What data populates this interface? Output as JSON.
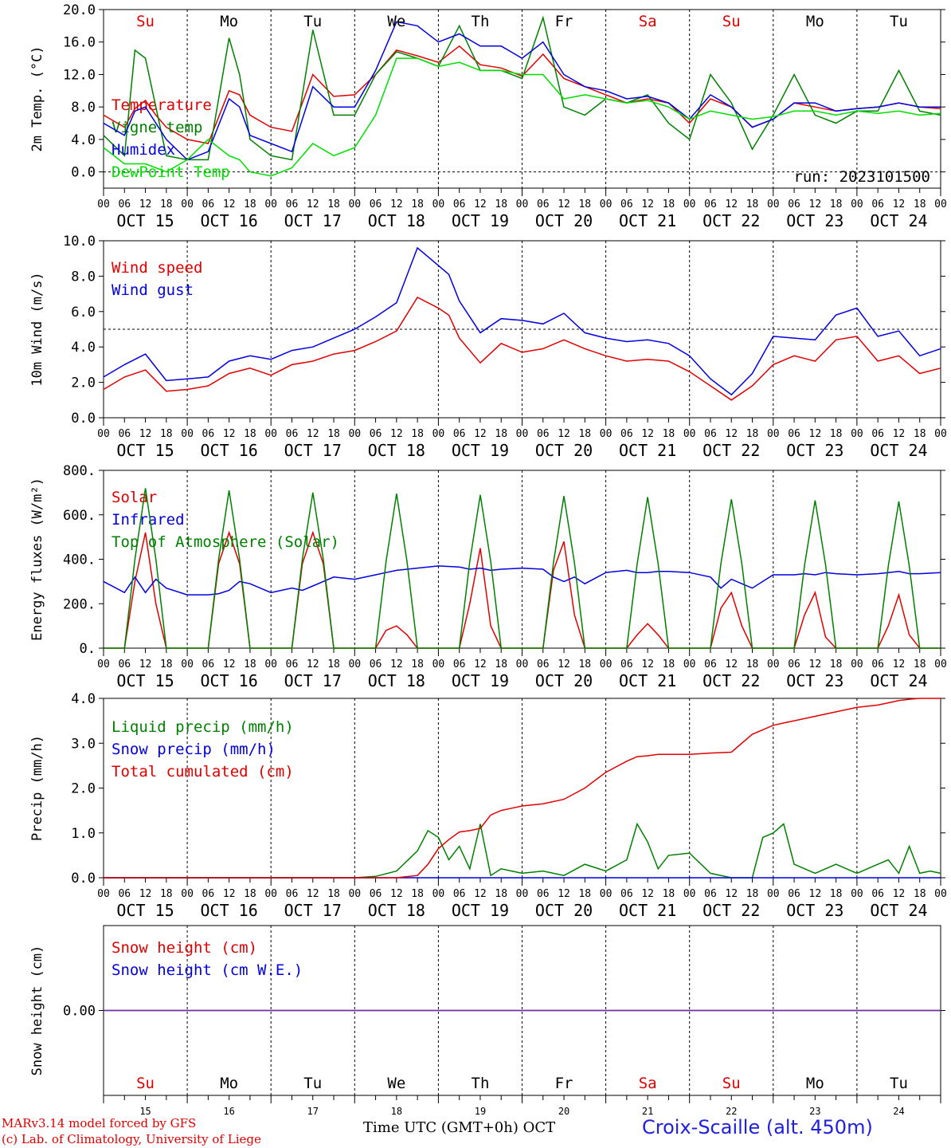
{
  "run_label": "run: 2023101500",
  "day_names": [
    "Su",
    "Mo",
    "Tu",
    "We",
    "Th",
    "Fr",
    "Sa",
    "Su",
    "Mo",
    "Tu"
  ],
  "day_name_colors": [
    "#e00000",
    "#000000",
    "#000000",
    "#000000",
    "#000000",
    "#000000",
    "#e00000",
    "#e00000",
    "#000000",
    "#000000"
  ],
  "date_labels": [
    "OCT 15",
    "OCT 16",
    "OCT 17",
    "OCT 18",
    "OCT 19",
    "OCT 20",
    "OCT 21",
    "OCT 22",
    "OCT 23",
    "OCT 24"
  ],
  "day_numbers": [
    "15",
    "16",
    "17",
    "18",
    "19",
    "20",
    "21",
    "22",
    "23",
    "24"
  ],
  "hour_ticks": [
    "00",
    "06",
    "12",
    "18"
  ],
  "hour_end": "00",
  "footer": {
    "model": "MARv3.14 model forced by GFS",
    "lab": "(c) Lab. of Climatology, University of Liege",
    "xlabel": "Time UTC (GMT+0h) OCT",
    "station": "Croix-Scaille (alt. 450m)"
  },
  "chart_data": [
    {
      "type": "line",
      "ylabel": "2m Temp. (°C)",
      "ylim": [
        -2,
        20
      ],
      "yticks": [
        0,
        4,
        8,
        12,
        16,
        20
      ],
      "ytick_labels": [
        "0.0",
        "4.0",
        "8.0",
        "12.0",
        "16.0",
        "20.0"
      ],
      "refline": 0,
      "x_hours": [
        0,
        6,
        9,
        12,
        15,
        18,
        24,
        30,
        36,
        39,
        42,
        48,
        54,
        60,
        66,
        72,
        78,
        84,
        90,
        96,
        102,
        108,
        114,
        120,
        126,
        132,
        138,
        144,
        150,
        156,
        162,
        168,
        174,
        180,
        186,
        192,
        198,
        204,
        210,
        216,
        222,
        228,
        234,
        240
      ],
      "series": [
        {
          "name": "Temperature",
          "color": "#e00000",
          "values": [
            7.0,
            5.5,
            7.8,
            8.8,
            7.0,
            5.5,
            4.0,
            3.5,
            10.0,
            9.5,
            7.0,
            5.5,
            5.0,
            12.0,
            9.3,
            9.5,
            12.0,
            15.0,
            14.3,
            13.5,
            15.5,
            13.2,
            12.8,
            11.8,
            14.5,
            11.5,
            10.5,
            9.5,
            8.5,
            9.0,
            8.5,
            6.0,
            9.0,
            8.0,
            5.5,
            6.5,
            8.5,
            8.0,
            7.5,
            7.8,
            8.0,
            8.5,
            8.0,
            7.8
          ]
        },
        {
          "name": "Vigne temp",
          "color": "#008000",
          "values": [
            4.5,
            2.0,
            15.0,
            14.0,
            8.0,
            2.0,
            1.5,
            1.5,
            16.5,
            12.0,
            4.0,
            2.0,
            1.5,
            17.5,
            7.0,
            7.0,
            12.0,
            14.8,
            14.0,
            13.0,
            18.0,
            12.5,
            12.5,
            11.5,
            19.0,
            8.0,
            7.0,
            9.0,
            8.5,
            9.5,
            6.0,
            4.0,
            12.0,
            8.5,
            2.8,
            7.0,
            12.0,
            7.0,
            6.0,
            7.5,
            7.5,
            12.5,
            7.5,
            7.0
          ]
        },
        {
          "name": "Humidex",
          "color": "#0000e0",
          "values": [
            6.0,
            4.5,
            7.5,
            8.0,
            6.0,
            4.0,
            1.5,
            2.5,
            9.0,
            8.0,
            4.5,
            3.5,
            2.5,
            10.5,
            8.0,
            8.0,
            12.5,
            18.5,
            18.0,
            16.0,
            17.0,
            15.5,
            15.5,
            14.0,
            16.0,
            12.0,
            10.5,
            10.0,
            9.0,
            9.3,
            8.5,
            6.5,
            9.5,
            8.0,
            5.5,
            6.5,
            8.5,
            8.5,
            7.5,
            7.8,
            8.0,
            8.5,
            8.0,
            8.0
          ]
        },
        {
          "name": "DewPoint Temp",
          "color": "#00dd00",
          "values": [
            3.0,
            1.0,
            1.0,
            1.0,
            0.5,
            0.0,
            1.5,
            4.0,
            2.0,
            1.5,
            0.0,
            -0.5,
            0.5,
            3.5,
            2.0,
            3.0,
            7.0,
            14.0,
            14.0,
            13.0,
            13.5,
            12.5,
            12.5,
            12.0,
            12.0,
            9.0,
            9.5,
            9.0,
            8.5,
            8.8,
            8.0,
            6.5,
            7.5,
            7.0,
            6.5,
            6.8,
            7.5,
            7.5,
            7.0,
            7.5,
            7.2,
            7.5,
            7.0,
            7.2
          ]
        }
      ]
    },
    {
      "type": "line",
      "ylabel": "10m Wind (m/s)",
      "ylim": [
        0,
        10
      ],
      "yticks": [
        0,
        2,
        4,
        6,
        8,
        10
      ],
      "ytick_labels": [
        "0.0",
        "2.0",
        "4.0",
        "6.0",
        "8.0",
        "10.0"
      ],
      "refline": 5,
      "x_hours": [
        0,
        6,
        12,
        18,
        24,
        30,
        36,
        42,
        48,
        54,
        60,
        66,
        72,
        78,
        84,
        90,
        96,
        99,
        102,
        108,
        114,
        120,
        126,
        132,
        138,
        144,
        150,
        156,
        162,
        168,
        174,
        180,
        186,
        192,
        198,
        204,
        210,
        216,
        222,
        228,
        234,
        240
      ],
      "series": [
        {
          "name": "Wind speed",
          "color": "#e00000",
          "values": [
            1.6,
            2.3,
            2.7,
            1.5,
            1.6,
            1.8,
            2.5,
            2.8,
            2.4,
            3.0,
            3.2,
            3.6,
            3.8,
            4.3,
            4.9,
            6.8,
            6.2,
            5.8,
            4.5,
            3.1,
            4.2,
            3.7,
            3.9,
            4.4,
            3.9,
            3.5,
            3.2,
            3.3,
            3.2,
            2.6,
            1.8,
            1.0,
            1.8,
            3.0,
            3.5,
            3.2,
            4.4,
            4.6,
            3.2,
            3.5,
            2.5,
            2.8
          ]
        },
        {
          "name": "Wind gust",
          "color": "#0000e0",
          "values": [
            2.3,
            3.0,
            3.6,
            2.1,
            2.2,
            2.3,
            3.2,
            3.5,
            3.3,
            3.8,
            4.0,
            4.5,
            5.0,
            5.7,
            6.5,
            9.6,
            8.6,
            8.1,
            6.6,
            4.8,
            5.6,
            5.5,
            5.3,
            5.9,
            4.8,
            4.5,
            4.3,
            4.4,
            4.2,
            3.5,
            2.2,
            1.3,
            2.5,
            4.6,
            4.5,
            4.4,
            5.8,
            6.2,
            4.6,
            4.9,
            3.5,
            3.9
          ]
        }
      ]
    },
    {
      "type": "line",
      "ylabel": "Energy fluxes (W/m²)",
      "ylim": [
        0,
        800
      ],
      "yticks": [
        0,
        200,
        400,
        600,
        800
      ],
      "ytick_labels": [
        "0.",
        "200.",
        "400.",
        "600.",
        "800."
      ],
      "x_hours": [
        0,
        6,
        9,
        12,
        15,
        18,
        24,
        30,
        33,
        36,
        39,
        42,
        48,
        54,
        57,
        60,
        63,
        66,
        72,
        78,
        81,
        84,
        87,
        90,
        96,
        102,
        105,
        108,
        111,
        114,
        120,
        126,
        129,
        132,
        135,
        138,
        144,
        150,
        153,
        156,
        159,
        162,
        168,
        174,
        177,
        180,
        183,
        186,
        192,
        198,
        201,
        204,
        207,
        210,
        216,
        222,
        225,
        228,
        231,
        234,
        240
      ],
      "series": [
        {
          "name": "Solar",
          "color": "#e00000",
          "values": [
            0,
            0,
            300,
            520,
            200,
            0,
            0,
            0,
            380,
            520,
            380,
            0,
            0,
            0,
            380,
            520,
            380,
            0,
            0,
            0,
            80,
            100,
            60,
            0,
            0,
            0,
            200,
            450,
            100,
            0,
            0,
            0,
            350,
            480,
            150,
            0,
            0,
            0,
            60,
            110,
            60,
            0,
            0,
            0,
            180,
            250,
            100,
            0,
            0,
            0,
            150,
            250,
            50,
            0,
            0,
            0,
            100,
            240,
            60,
            0,
            0
          ]
        },
        {
          "name": "Infrared",
          "color": "#0000e0",
          "values": [
            300,
            250,
            320,
            250,
            310,
            270,
            240,
            240,
            245,
            260,
            300,
            290,
            250,
            270,
            260,
            280,
            300,
            320,
            310,
            330,
            340,
            350,
            355,
            360,
            370,
            365,
            355,
            360,
            350,
            355,
            360,
            355,
            320,
            300,
            320,
            290,
            340,
            350,
            340,
            340,
            345,
            345,
            340,
            320,
            270,
            310,
            290,
            270,
            330,
            330,
            335,
            330,
            340,
            335,
            330,
            335,
            340,
            345,
            335,
            335,
            340
          ]
        },
        {
          "name": "Top of Atmosphere (Solar)",
          "color": "#008000",
          "values": [
            0,
            0,
            400,
            720,
            400,
            0,
            0,
            0,
            400,
            710,
            400,
            0,
            0,
            0,
            400,
            700,
            400,
            0,
            0,
            0,
            390,
            695,
            390,
            0,
            0,
            0,
            390,
            690,
            390,
            0,
            0,
            0,
            385,
            685,
            385,
            0,
            0,
            0,
            380,
            680,
            380,
            0,
            0,
            0,
            380,
            670,
            380,
            0,
            0,
            0,
            375,
            665,
            375,
            0,
            0,
            0,
            370,
            660,
            370,
            0,
            0
          ]
        }
      ]
    },
    {
      "type": "line",
      "ylabel": "Precip (mm/h)",
      "ylim": [
        0,
        4
      ],
      "yticks": [
        0,
        1,
        2,
        3,
        4
      ],
      "ytick_labels": [
        "0.0",
        "1.0",
        "2.0",
        "3.0",
        "4.0"
      ],
      "x_hours": [
        0,
        72,
        78,
        84,
        90,
        93,
        96,
        99,
        102,
        105,
        108,
        111,
        114,
        117,
        120,
        126,
        132,
        138,
        144,
        150,
        153,
        156,
        159,
        162,
        168,
        174,
        180,
        186,
        189,
        192,
        195,
        198,
        204,
        210,
        216,
        222,
        225,
        228,
        231,
        234,
        237,
        240
      ],
      "series": [
        {
          "name": "Liquid precip (mm/h)",
          "color": "#008000",
          "values": [
            0,
            0,
            0.03,
            0.15,
            0.6,
            1.05,
            0.9,
            0.4,
            0.7,
            0.2,
            1.2,
            0.05,
            0.2,
            0.15,
            0.1,
            0.15,
            0.05,
            0.3,
            0.15,
            0.4,
            1.2,
            0.8,
            0.2,
            0.5,
            0.55,
            0.1,
            0,
            0,
            0.9,
            1.0,
            1.2,
            0.3,
            0.1,
            0.3,
            0.1,
            0.3,
            0.4,
            0.1,
            0.7,
            0.1,
            0.15,
            0.1
          ]
        },
        {
          "name": "Snow precip (mm/h)",
          "color": "#0000e0",
          "values": [
            0,
            0,
            0,
            0,
            0,
            0,
            0,
            0,
            0,
            0,
            0,
            0,
            0,
            0,
            0,
            0,
            0,
            0,
            0,
            0,
            0,
            0,
            0,
            0,
            0,
            0,
            0,
            0,
            0,
            0,
            0,
            0,
            0,
            0,
            0,
            0,
            0,
            0,
            0,
            0,
            0,
            0
          ]
        },
        {
          "name": "Total cumulated (cm)",
          "color": "#e00000",
          "values": [
            0,
            0,
            0,
            0,
            0.05,
            0.3,
            0.65,
            0.85,
            1.02,
            1.05,
            1.1,
            1.4,
            1.5,
            1.55,
            1.6,
            1.65,
            1.75,
            2.0,
            2.35,
            2.6,
            2.7,
            2.72,
            2.75,
            2.75,
            2.75,
            2.78,
            2.8,
            3.2,
            3.3,
            3.4,
            3.45,
            3.5,
            3.6,
            3.7,
            3.8,
            3.85,
            3.9,
            3.95,
            3.98,
            4.0,
            4.0,
            4.0
          ]
        }
      ]
    },
    {
      "type": "line",
      "ylabel": "Snow height (cm)",
      "ylim": [
        -1,
        1
      ],
      "yticks": [
        0
      ],
      "ytick_labels": [
        "0.00"
      ],
      "x_hours": [
        0,
        240
      ],
      "series": [
        {
          "name": "Snow height (cm)",
          "color": "#e00000",
          "values": [
            0,
            0
          ]
        },
        {
          "name": "Snow height (cm W.E.)",
          "color": "#0000e0",
          "values": [
            0,
            0
          ]
        }
      ],
      "overlay_color": "#7030a0"
    }
  ]
}
